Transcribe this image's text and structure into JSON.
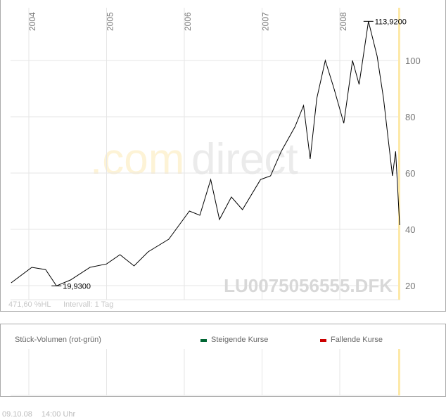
{
  "symbol": "LU0075056555.DFK",
  "watermark": {
    "part1": ".com",
    "part2": "direct"
  },
  "stats": {
    "range": "471,60 %HL",
    "interval": "Intervall: 1 Tag"
  },
  "volume": {
    "title": "Stück-Volumen (rot-grün)",
    "legend": [
      {
        "label": "Steigende Kurse",
        "color": "#006633"
      },
      {
        "label": "Fallende Kurse",
        "color": "#cc0000"
      }
    ]
  },
  "footer": {
    "date": "09.10.08",
    "time": "14:00 Uhr"
  },
  "colors": {
    "line": "#000000",
    "grid": "#e6e6e6",
    "current_marker": "#fde9a8",
    "axis_text": "#777777"
  },
  "chart_data": {
    "type": "line",
    "x_ticks": [
      "2004",
      "2005",
      "2006",
      "2007",
      "2008"
    ],
    "y_ticks": [
      20,
      40,
      60,
      80,
      100
    ],
    "ylim": [
      15,
      118
    ],
    "xlim": [
      "2003-10-01",
      "2008-10-09"
    ],
    "grid": true,
    "annotations": [
      {
        "label": "19,9300",
        "date": "2004-05-10",
        "value": 19.93
      },
      {
        "label": "113,9200",
        "date": "2008-05-15",
        "value": 113.92
      }
    ],
    "series": [
      {
        "points": [
          [
            "2003-10-10",
            21
          ],
          [
            "2004-01-15",
            26.5
          ],
          [
            "2004-03-20",
            25.7
          ],
          [
            "2004-05-10",
            19.93
          ],
          [
            "2004-07-15",
            22
          ],
          [
            "2004-10-15",
            26.5
          ],
          [
            "2005-01-01",
            27.7
          ],
          [
            "2005-03-05",
            31
          ],
          [
            "2005-05-10",
            27
          ],
          [
            "2005-07-15",
            32
          ],
          [
            "2005-10-20",
            36.5
          ],
          [
            "2006-01-25",
            46.5
          ],
          [
            "2006-03-15",
            45
          ],
          [
            "2006-05-05",
            57.7
          ],
          [
            "2006-06-15",
            43.5
          ],
          [
            "2006-08-10",
            51.5
          ],
          [
            "2006-10-01",
            47
          ],
          [
            "2006-12-25",
            57.7
          ],
          [
            "2007-02-10",
            59
          ],
          [
            "2007-04-01",
            67.7
          ],
          [
            "2007-06-05",
            76.5
          ],
          [
            "2007-07-15",
            84
          ],
          [
            "2007-08-15",
            65
          ],
          [
            "2007-09-15",
            86.5
          ],
          [
            "2007-10-25",
            100
          ],
          [
            "2007-12-05",
            90
          ],
          [
            "2008-01-20",
            77.7
          ],
          [
            "2008-03-01",
            100
          ],
          [
            "2008-04-01",
            91.5
          ],
          [
            "2008-05-15",
            113.92
          ],
          [
            "2008-06-25",
            101.5
          ],
          [
            "2008-07-25",
            86.5
          ],
          [
            "2008-08-15",
            72.7
          ],
          [
            "2008-09-05",
            59
          ],
          [
            "2008-09-20",
            67.7
          ],
          [
            "2008-10-09",
            41.5
          ]
        ]
      }
    ]
  }
}
